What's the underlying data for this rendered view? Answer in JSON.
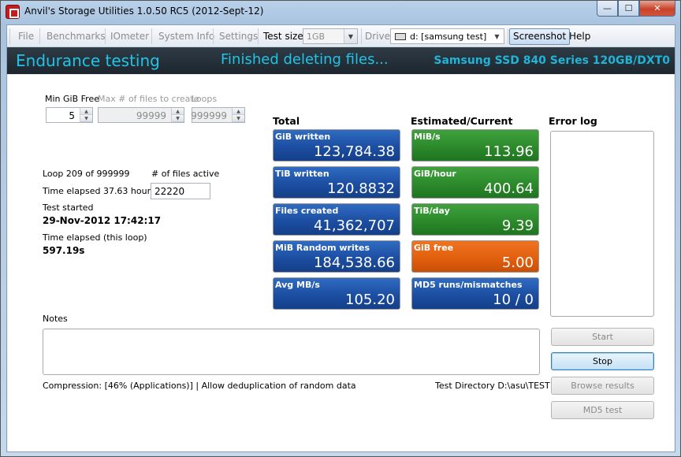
{
  "window": {
    "title": "Anvil's Storage Utilities 1.0.50 RC5 (2012-Sept-12)",
    "min_glyph": "—",
    "max_glyph": "☐",
    "close_glyph": "✕",
    "icon": "app-icon"
  },
  "menu": {
    "file": "File",
    "benchmarks": "Benchmarks",
    "iometer": "IOmeter",
    "system_info": "System Info",
    "settings": "Settings",
    "test_size_label": "Test size",
    "test_size_value": "1GB",
    "drive_label": "Drive",
    "drive_value": "d: [samsung test]",
    "screenshot": "Screenshot",
    "help": "Help",
    "arrow_glyph": "▼"
  },
  "banner": {
    "mode": "Endurance testing",
    "status": "Finished deleting files...",
    "device": "Samsung SSD 840 Series 120GB/DXT0",
    "color": "#1fc4e8"
  },
  "settings": {
    "min_gib_free_label": "Min GiB Free",
    "min_gib_free_value": "5",
    "max_files_label": "Max # of files to create",
    "max_files_value": "99999",
    "loops_label": "Loops",
    "loops_value": "999999",
    "spin_up": "▲",
    "spin_down": "▼"
  },
  "progress": {
    "loop": "Loop 209 of 999999",
    "files_active_label": "# of files active",
    "files_active_value": "22220",
    "time_elapsed": "Time elapsed 37.63 hours",
    "test_started_label": "Test started",
    "test_started_value": "29-Nov-2012 17:42:17",
    "loop_elapsed_label": "Time elapsed (this loop)",
    "loop_elapsed_value": "597.19s"
  },
  "totals": {
    "header": "Total",
    "tiles": [
      {
        "label": "GiB written",
        "value": "123,784.38"
      },
      {
        "label": "TiB written",
        "value": "120.8832"
      },
      {
        "label": "Files created",
        "value": "41,362,707"
      },
      {
        "label": "MiB Random writes",
        "value": "184,538.66"
      },
      {
        "label": "Avg MB/s",
        "value": "105.20"
      }
    ]
  },
  "estimated": {
    "header": "Estimated/Current",
    "tiles": [
      {
        "label": "MiB/s",
        "value": "113.96"
      },
      {
        "label": "GiB/hour",
        "value": "400.64"
      },
      {
        "label": "TiB/day",
        "value": "9.39"
      },
      {
        "label": "GiB free",
        "value": "5.00"
      },
      {
        "label": "MD5 runs/mismatches",
        "value": "10 / 0"
      }
    ]
  },
  "error_log": {
    "header": "Error log"
  },
  "notes": {
    "label": "Notes"
  },
  "footer": {
    "compression": "Compression: [46% (Applications)] | Allow deduplication of random data",
    "test_directory": "Test Directory D:\\asu\\TEST"
  },
  "buttons": {
    "start": "Start",
    "stop": "Stop",
    "browse": "Browse results",
    "md5": "MD5 test"
  },
  "colors": {
    "tile_blue": "#1c4ea2",
    "tile_green": "#2c8a2b",
    "tile_orange": "#e2600e"
  }
}
